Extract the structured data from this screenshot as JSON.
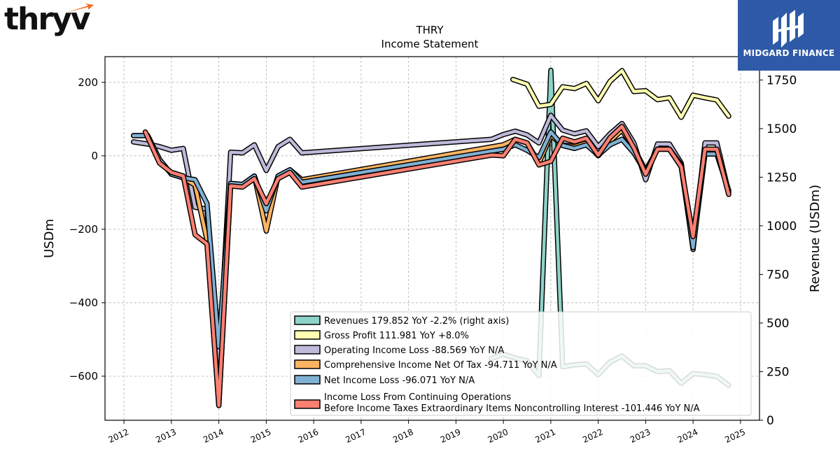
{
  "logos": {
    "left_brand": "thryv",
    "right_brand": "MIDGARD FINANCE"
  },
  "chart_data": {
    "type": "line",
    "title": "THRY",
    "subtitle": "Income Statement",
    "ylabel_left": "USDm",
    "ylabel_right": "Revenue (USDm)",
    "ylim_left": [
      -720,
      270
    ],
    "ylim_right": [
      0,
      1870
    ],
    "yticks_left": [
      200,
      0,
      -200,
      -400,
      -600
    ],
    "yticks_left_labels": [
      "200",
      "0",
      "−200",
      "−400",
      "−600"
    ],
    "yticks_right": [
      0,
      250,
      500,
      750,
      1000,
      1250,
      1500,
      1750
    ],
    "yticks_right_labels": [
      "0",
      "250",
      "500",
      "750",
      "1000",
      "1250",
      "1500",
      "1750"
    ],
    "xlim": [
      2011.6,
      2025.4
    ],
    "xticks": [
      2012,
      2013,
      2014,
      2015,
      2016,
      2017,
      2018,
      2019,
      2020,
      2021,
      2022,
      2023,
      2024,
      2025
    ],
    "xtick_labels": [
      "2012",
      "2013",
      "2014",
      "2015",
      "2016",
      "2017",
      "2018",
      "2019",
      "2020",
      "2021",
      "2022",
      "2023",
      "2024",
      "2025"
    ],
    "grid": true,
    "legend_position": "lower-right",
    "series": [
      {
        "name": "Revenues",
        "legend_label": "Revenues  179.852 YoY -2.2% (right axis)",
        "axis": "right",
        "color": "#8dd3c7",
        "points": [
          [
            2019.75,
            318
          ],
          [
            2020.0,
            340
          ],
          [
            2020.25,
            320
          ],
          [
            2020.5,
            305
          ],
          [
            2020.75,
            230
          ],
          [
            2021.0,
            1800
          ],
          [
            2021.25,
            275
          ],
          [
            2021.5,
            285
          ],
          [
            2021.75,
            290
          ],
          [
            2022.0,
            235
          ],
          [
            2022.25,
            300
          ],
          [
            2022.5,
            330
          ],
          [
            2022.75,
            280
          ],
          [
            2023.0,
            280
          ],
          [
            2023.25,
            250
          ],
          [
            2023.5,
            255
          ],
          [
            2023.75,
            190
          ],
          [
            2024.0,
            240
          ],
          [
            2024.25,
            235
          ],
          [
            2024.5,
            225
          ],
          [
            2024.75,
            180
          ]
        ]
      },
      {
        "name": "Gross Profit",
        "legend_label": "Gross Profit  111.981 YoY +8.0%",
        "axis": "left",
        "color": "#ffffb3",
        "points": [
          [
            2020.2,
            208
          ],
          [
            2020.5,
            195
          ],
          [
            2020.75,
            135
          ],
          [
            2021.0,
            140
          ],
          [
            2021.25,
            188
          ],
          [
            2021.5,
            183
          ],
          [
            2021.75,
            197
          ],
          [
            2022.0,
            150
          ],
          [
            2022.25,
            203
          ],
          [
            2022.5,
            232
          ],
          [
            2022.75,
            175
          ],
          [
            2023.0,
            177
          ],
          [
            2023.25,
            153
          ],
          [
            2023.5,
            158
          ],
          [
            2023.75,
            105
          ],
          [
            2024.0,
            165
          ],
          [
            2024.25,
            158
          ],
          [
            2024.5,
            152
          ],
          [
            2024.75,
            108
          ]
        ]
      },
      {
        "name": "Operating Income Loss",
        "legend_label": "Operating Income Loss  -88.569 YoY N/A",
        "axis": "left",
        "color": "#bebada",
        "points": [
          [
            2012.2,
            38
          ],
          [
            2012.5,
            32
          ],
          [
            2012.75,
            25
          ],
          [
            2013.0,
            15
          ],
          [
            2013.25,
            20
          ],
          [
            2013.5,
            -140
          ],
          [
            2013.75,
            -145
          ],
          [
            2014.0,
            -580
          ],
          [
            2014.25,
            10
          ],
          [
            2014.5,
            8
          ],
          [
            2014.75,
            30
          ],
          [
            2015.0,
            -40
          ],
          [
            2015.25,
            25
          ],
          [
            2015.5,
            45
          ],
          [
            2015.75,
            8
          ],
          [
            2019.75,
            45
          ],
          [
            2020.0,
            58
          ],
          [
            2020.25,
            67
          ],
          [
            2020.5,
            57
          ],
          [
            2020.75,
            35
          ],
          [
            2021.0,
            110
          ],
          [
            2021.25,
            70
          ],
          [
            2021.5,
            60
          ],
          [
            2021.75,
            68
          ],
          [
            2022.0,
            25
          ],
          [
            2022.25,
            60
          ],
          [
            2022.5,
            88
          ],
          [
            2022.75,
            35
          ],
          [
            2023.0,
            -65
          ],
          [
            2023.25,
            32
          ],
          [
            2023.5,
            32
          ],
          [
            2023.75,
            -20
          ],
          [
            2024.0,
            -255
          ],
          [
            2024.25,
            35
          ],
          [
            2024.5,
            35
          ],
          [
            2024.75,
            -100
          ]
        ]
      },
      {
        "name": "Comprehensive Income Net Of Tax",
        "legend_label": "Comprehensive Income Net Of Tax  -94.711 YoY N/A",
        "axis": "left",
        "color": "#fdb462",
        "points": [
          [
            2012.2,
            55
          ],
          [
            2012.5,
            55
          ],
          [
            2012.75,
            -10
          ],
          [
            2013.0,
            -50
          ],
          [
            2013.25,
            -60
          ],
          [
            2013.5,
            -80
          ],
          [
            2013.75,
            -230
          ],
          [
            2014.0,
            -680
          ],
          [
            2014.25,
            -75
          ],
          [
            2014.5,
            -78
          ],
          [
            2014.75,
            -55
          ],
          [
            2015.0,
            -205
          ],
          [
            2015.25,
            -55
          ],
          [
            2015.5,
            -38
          ],
          [
            2015.75,
            -65
          ],
          [
            2020.0,
            30
          ],
          [
            2020.25,
            45
          ],
          [
            2020.5,
            35
          ],
          [
            2020.75,
            -20
          ],
          [
            2021.0,
            55
          ],
          [
            2021.25,
            30
          ],
          [
            2021.5,
            25
          ],
          [
            2021.75,
            35
          ],
          [
            2022.0,
            0
          ],
          [
            2022.25,
            40
          ],
          [
            2022.5,
            70
          ],
          [
            2022.75,
            20
          ],
          [
            2023.0,
            -40
          ],
          [
            2023.25,
            18
          ],
          [
            2023.5,
            18
          ],
          [
            2023.75,
            -30
          ],
          [
            2024.0,
            -250
          ],
          [
            2024.25,
            10
          ],
          [
            2024.5,
            10
          ],
          [
            2024.75,
            -95
          ]
        ]
      },
      {
        "name": "Net Income Loss",
        "legend_label": "Net Income Loss  -96.071 YoY N/A",
        "axis": "left",
        "color": "#80b1d3",
        "points": [
          [
            2012.2,
            55
          ],
          [
            2012.5,
            55
          ],
          [
            2012.75,
            -10
          ],
          [
            2013.0,
            -50
          ],
          [
            2013.25,
            -60
          ],
          [
            2013.5,
            -65
          ],
          [
            2013.75,
            -130
          ],
          [
            2014.0,
            -520
          ],
          [
            2014.25,
            -75
          ],
          [
            2014.5,
            -78
          ],
          [
            2014.75,
            -55
          ],
          [
            2015.0,
            -150
          ],
          [
            2015.25,
            -55
          ],
          [
            2015.5,
            -38
          ],
          [
            2015.75,
            -72
          ],
          [
            2020.0,
            18
          ],
          [
            2020.25,
            30
          ],
          [
            2020.5,
            15
          ],
          [
            2020.75,
            -5
          ],
          [
            2021.0,
            65
          ],
          [
            2021.25,
            28
          ],
          [
            2021.5,
            20
          ],
          [
            2021.75,
            30
          ],
          [
            2022.0,
            2
          ],
          [
            2022.25,
            30
          ],
          [
            2022.5,
            45
          ],
          [
            2022.75,
            8
          ],
          [
            2023.0,
            -45
          ],
          [
            2023.25,
            18
          ],
          [
            2023.5,
            18
          ],
          [
            2023.75,
            -25
          ],
          [
            2024.0,
            -250
          ],
          [
            2024.25,
            5
          ],
          [
            2024.5,
            5
          ],
          [
            2024.75,
            -95
          ]
        ]
      },
      {
        "name": "Income Loss From Continuing Operations Before Income Taxes Extraordinary Items Noncontrolling Interest",
        "legend_label_line1": "Income Loss From Continuing Operations",
        "legend_label_line2": "Before Income Taxes Extraordinary Items Noncontrolling Interest  -101.446 YoY N/A",
        "axis": "left",
        "color": "#fb8072",
        "points": [
          [
            2012.45,
            65
          ],
          [
            2012.75,
            -20
          ],
          [
            2013.0,
            -45
          ],
          [
            2013.25,
            -55
          ],
          [
            2013.5,
            -215
          ],
          [
            2013.75,
            -240
          ],
          [
            2014.0,
            -680
          ],
          [
            2014.25,
            -82
          ],
          [
            2014.5,
            -85
          ],
          [
            2014.75,
            -62
          ],
          [
            2015.0,
            -130
          ],
          [
            2015.25,
            -62
          ],
          [
            2015.5,
            -45
          ],
          [
            2015.75,
            -85
          ],
          [
            2019.75,
            2
          ],
          [
            2020.0,
            0
          ],
          [
            2020.25,
            45
          ],
          [
            2020.5,
            35
          ],
          [
            2020.75,
            -25
          ],
          [
            2021.0,
            -15
          ],
          [
            2021.25,
            48
          ],
          [
            2021.5,
            38
          ],
          [
            2021.75,
            48
          ],
          [
            2022.0,
            2
          ],
          [
            2022.25,
            50
          ],
          [
            2022.5,
            80
          ],
          [
            2022.75,
            22
          ],
          [
            2023.0,
            -50
          ],
          [
            2023.25,
            18
          ],
          [
            2023.5,
            18
          ],
          [
            2023.75,
            -30
          ],
          [
            2024.0,
            -220
          ],
          [
            2024.25,
            18
          ],
          [
            2024.5,
            18
          ],
          [
            2024.75,
            -105
          ]
        ]
      }
    ]
  }
}
